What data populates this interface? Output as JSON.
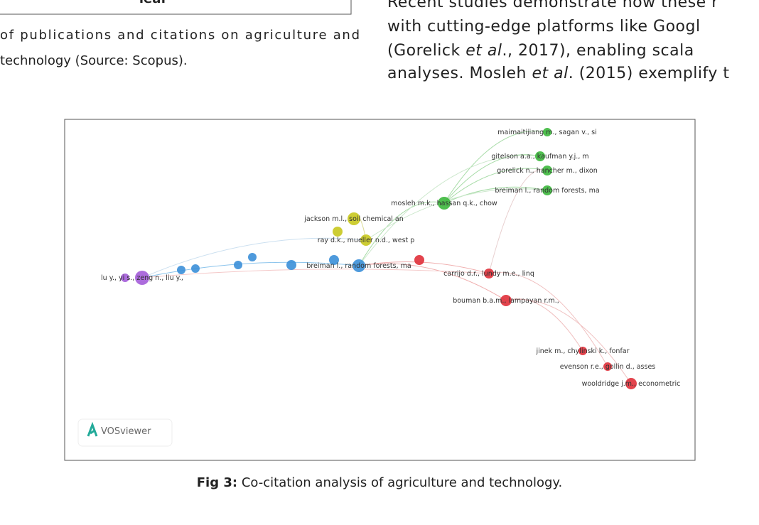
{
  "left_column": {
    "box_text": "leaf",
    "caption_lines": [
      "of publications and citations on agriculture and",
      "technology (Source: Scopus)."
    ]
  },
  "right_column": {
    "lines": [
      [
        "Recent studies demonstrate how these r"
      ],
      [
        "with cutting-edge platforms like Googl"
      ],
      [
        "(Gorelick ",
        "et al",
        "., 2017), enabling scala"
      ],
      [
        "analyses. Mosleh ",
        "et al",
        ". (2015) exemplify t"
      ]
    ]
  },
  "figure": {
    "logo": "VOSviewer",
    "nodes": [
      {
        "label": "maimaitijiang m., sagan v., si",
        "cluster": "green"
      },
      {
        "label": "gitelson a.a., kaufman y.j., m",
        "cluster": "green"
      },
      {
        "label": "gorelick n., hancher m., dixon",
        "cluster": "green"
      },
      {
        "label": "breiman l., random forests, ma",
        "cluster": "green"
      },
      {
        "label": "mosleh m.k., hassan q.k., chow",
        "cluster": "green"
      },
      {
        "label": "jackson m.l., soil chemical an",
        "cluster": "yellow"
      },
      {
        "label": "ray d.k., mueller n.d., west p",
        "cluster": "yellow"
      },
      {
        "label": "breiman l., random forests, ma",
        "cluster": "blue"
      },
      {
        "label": "lu y., yi s., zeng n., liu y.,",
        "cluster": "purple"
      },
      {
        "label": "carrijo d.r., lundy m.e., linq",
        "cluster": "red"
      },
      {
        "label": "bouman b.a.m., lampayan r.m.,",
        "cluster": "red"
      },
      {
        "label": "jinek m., chylinski k., fonfar",
        "cluster": "red"
      },
      {
        "label": "evenson r.e., gollin d., asses",
        "cluster": "red"
      },
      {
        "label": "wooldridge j.m., econometric",
        "cluster": "red"
      }
    ]
  },
  "caption": {
    "label": "Fig 3:",
    "text": " Co-citation analysis of agriculture and technology."
  }
}
